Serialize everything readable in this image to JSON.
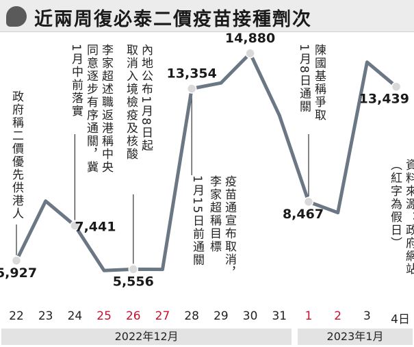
{
  "header": {
    "title": "近兩周復必泰二價疫苗接種劑次"
  },
  "chart_data": {
    "type": "line",
    "title": "近兩周復必泰二價疫苗接種劑次",
    "x": [
      "22",
      "23",
      "24",
      "25",
      "26",
      "27",
      "28",
      "29",
      "30",
      "31",
      "1",
      "2",
      "3",
      "4日"
    ],
    "holiday_flags": [
      false,
      false,
      false,
      true,
      true,
      true,
      false,
      false,
      false,
      false,
      true,
      true,
      false,
      false
    ],
    "values": [
      5927,
      8500,
      7441,
      5500,
      5556,
      5550,
      13354,
      13600,
      14880,
      12200,
      8467,
      8000,
      14500,
      13439
    ],
    "ylim": [
      4000,
      16000
    ],
    "line_color": "#6b7785",
    "marker_color": "#d9d9d9",
    "value_labels": [
      {
        "index": 0,
        "text": "5,927"
      },
      {
        "index": 2,
        "text": "7,441"
      },
      {
        "index": 4,
        "text": "5,556"
      },
      {
        "index": 6,
        "text": "13,354"
      },
      {
        "index": 8,
        "text": "14,880"
      },
      {
        "index": 10,
        "text": "8,467"
      },
      {
        "index": 13,
        "text": "13,439"
      }
    ],
    "annotations": [
      {
        "index": 0,
        "text": "政府稱二價優先供港人"
      },
      {
        "index": 2,
        "text": "李家超述職返港稱中央\n同意逐步有序通關，冀\n1月中前落實"
      },
      {
        "index": 4,
        "text": "內地公布1月8日起\n取消入境檢疫及核酸"
      },
      {
        "index": 6,
        "text": "1月15日前通關"
      },
      {
        "index": 7,
        "text": "疫苗通宣布取消，\n李家超稱目標"
      },
      {
        "index": 10,
        "text": "陳國基稱爭取\n1月8日通關"
      }
    ],
    "source": "資料來源：政府網站\n（紅字為假日）",
    "months": [
      {
        "label": "2022年12月",
        "from": 0,
        "to": 9
      },
      {
        "label": "2023年1月",
        "from": 10,
        "to": 13
      }
    ]
  }
}
